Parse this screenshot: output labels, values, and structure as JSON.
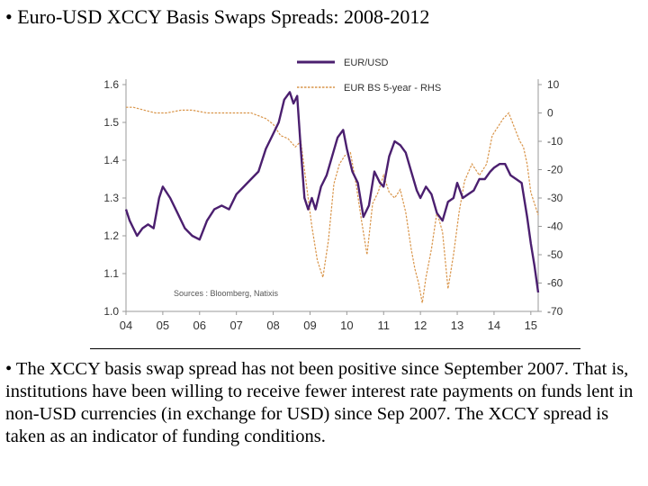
{
  "slide": {
    "title": "• Euro-USD XCCY Basis Swaps Spreads: 2008-2012",
    "body": "• The XCCY basis swap spread has not been positive since September 2007. That is, institutions have been willing to receive fewer interest rate payments on funds lent in non-USD currencies (in exchange for USD) since Sep 2007. The XCCY spread is taken as an indicator of funding conditions."
  },
  "colors": {
    "eurusd": "#4b1f6f",
    "basis": "#d9954a",
    "axis": "#999999",
    "tick_text": "#333333"
  },
  "chart_data": {
    "type": "line",
    "source_note": "Sources : Bloomberg, Natixis",
    "legend_placement": "top-center",
    "grid": false,
    "x_ticks": [
      "04",
      "05",
      "06",
      "07",
      "08",
      "09",
      "10",
      "11",
      "12",
      "13",
      "14",
      "15"
    ],
    "xlim": [
      2004,
      2015.2
    ],
    "y_left": {
      "ticks": [
        "1.6",
        "1.5",
        "1.4",
        "1.3",
        "1.2",
        "1.1",
        "1.0"
      ],
      "lim": [
        1.0,
        1.6
      ]
    },
    "y_right": {
      "ticks": [
        "10",
        "0",
        "-10",
        "-20",
        "-30",
        "-40",
        "-50",
        "-60",
        "-70"
      ],
      "lim": [
        -70,
        10
      ]
    },
    "series": [
      {
        "name": "EUR/USD",
        "axis": "left",
        "x": [
          2004.0,
          2004.1,
          2004.2,
          2004.3,
          2004.45,
          2004.6,
          2004.75,
          2004.9,
          2005.0,
          2005.2,
          2005.4,
          2005.6,
          2005.8,
          2006.0,
          2006.2,
          2006.4,
          2006.6,
          2006.8,
          2007.0,
          2007.2,
          2007.4,
          2007.6,
          2007.8,
          2008.0,
          2008.15,
          2008.3,
          2008.45,
          2008.55,
          2008.65,
          2008.75,
          2008.85,
          2008.95,
          2009.05,
          2009.15,
          2009.3,
          2009.45,
          2009.6,
          2009.75,
          2009.9,
          2010.0,
          2010.15,
          2010.3,
          2010.45,
          2010.6,
          2010.75,
          2010.9,
          2011.0,
          2011.15,
          2011.3,
          2011.45,
          2011.6,
          2011.75,
          2011.9,
          2012.0,
          2012.15,
          2012.3,
          2012.45,
          2012.6,
          2012.75,
          2012.9,
          2013.0,
          2013.15,
          2013.3,
          2013.45,
          2013.6,
          2013.75,
          2013.9,
          2014.0,
          2014.15,
          2014.3,
          2014.45,
          2014.6,
          2014.75,
          2014.9,
          2015.0,
          2015.1,
          2015.2
        ],
        "y": [
          1.27,
          1.24,
          1.22,
          1.2,
          1.22,
          1.23,
          1.22,
          1.3,
          1.33,
          1.3,
          1.26,
          1.22,
          1.2,
          1.19,
          1.24,
          1.27,
          1.28,
          1.27,
          1.31,
          1.33,
          1.35,
          1.37,
          1.43,
          1.47,
          1.5,
          1.56,
          1.58,
          1.55,
          1.57,
          1.43,
          1.3,
          1.27,
          1.3,
          1.27,
          1.33,
          1.36,
          1.41,
          1.46,
          1.48,
          1.43,
          1.37,
          1.34,
          1.25,
          1.28,
          1.37,
          1.34,
          1.33,
          1.41,
          1.45,
          1.44,
          1.42,
          1.37,
          1.32,
          1.3,
          1.33,
          1.31,
          1.26,
          1.24,
          1.29,
          1.3,
          1.34,
          1.3,
          1.31,
          1.32,
          1.35,
          1.35,
          1.37,
          1.38,
          1.39,
          1.39,
          1.36,
          1.35,
          1.34,
          1.25,
          1.18,
          1.12,
          1.05
        ]
      },
      {
        "name": "EUR BS 5-year - RHS",
        "axis": "right",
        "x": [
          2004.0,
          2004.2,
          2004.5,
          2004.8,
          2005.1,
          2005.5,
          2005.8,
          2006.2,
          2006.5,
          2006.8,
          2007.1,
          2007.4,
          2007.6,
          2007.8,
          2008.0,
          2008.2,
          2008.4,
          2008.6,
          2008.75,
          2008.85,
          2008.95,
          2009.05,
          2009.2,
          2009.35,
          2009.5,
          2009.65,
          2009.8,
          2009.95,
          2010.1,
          2010.25,
          2010.4,
          2010.55,
          2010.7,
          2010.85,
          2011.0,
          2011.15,
          2011.3,
          2011.45,
          2011.6,
          2011.75,
          2011.85,
          2011.95,
          2012.05,
          2012.15,
          2012.3,
          2012.45,
          2012.6,
          2012.75,
          2012.9,
          2013.05,
          2013.2,
          2013.4,
          2013.6,
          2013.8,
          2013.95,
          2014.1,
          2014.25,
          2014.4,
          2014.55,
          2014.7,
          2014.8,
          2014.9,
          2015.0,
          2015.1,
          2015.2
        ],
        "y": [
          2,
          2,
          1,
          0,
          0,
          1,
          1,
          0,
          0,
          0,
          0,
          0,
          -1,
          -2,
          -4,
          -8,
          -9,
          -12,
          -10,
          -20,
          -30,
          -40,
          -52,
          -58,
          -45,
          -25,
          -18,
          -15,
          -14,
          -25,
          -38,
          -50,
          -32,
          -28,
          -22,
          -28,
          -30,
          -27,
          -35,
          -48,
          -55,
          -60,
          -67,
          -58,
          -48,
          -35,
          -42,
          -62,
          -50,
          -35,
          -24,
          -18,
          -22,
          -18,
          -8,
          -5,
          -2,
          0,
          -5,
          -10,
          -12,
          -18,
          -28,
          -32,
          -36
        ]
      }
    ]
  }
}
